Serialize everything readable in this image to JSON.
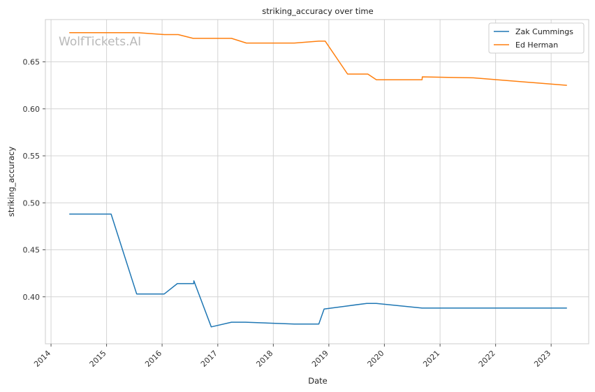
{
  "watermark": "WolfTickets.AI",
  "chart_data": {
    "type": "line",
    "title": "striking_accuracy over time",
    "xlabel": "Date",
    "ylabel": "striking_accuracy",
    "xlim": [
      "2013-11-25",
      "2023-09-05"
    ],
    "ylim": [
      0.35,
      0.695
    ],
    "x_ticks": [
      "2014",
      "2015",
      "2016",
      "2017",
      "2018",
      "2019",
      "2020",
      "2021",
      "2022",
      "2023"
    ],
    "y_ticks": [
      "0.40",
      "0.45",
      "0.50",
      "0.55",
      "0.60",
      "0.65"
    ],
    "grid": true,
    "legend_position": "top-right",
    "series": [
      {
        "name": "Zak Cummings",
        "color": "#1f77b4",
        "points": [
          [
            "2014-05-01",
            0.488
          ],
          [
            "2015-01-31",
            0.488
          ],
          [
            "2015-07-18",
            0.403
          ],
          [
            "2016-01-15",
            0.403
          ],
          [
            "2016-04-10",
            0.414
          ],
          [
            "2016-07-27",
            0.414
          ],
          [
            "2016-07-28",
            0.417
          ],
          [
            "2016-11-19",
            0.368
          ],
          [
            "2017-04-01",
            0.373
          ],
          [
            "2017-07-01",
            0.373
          ],
          [
            "2018-05-19",
            0.371
          ],
          [
            "2018-10-27",
            0.371
          ],
          [
            "2018-12-01",
            0.387
          ],
          [
            "2019-04-20",
            0.39
          ],
          [
            "2019-09-07",
            0.393
          ],
          [
            "2019-11-09",
            0.393
          ],
          [
            "2020-09-05",
            0.388
          ],
          [
            "2023-04-15",
            0.388
          ]
        ]
      },
      {
        "name": "Ed Herman",
        "color": "#ff7f0e",
        "points": [
          [
            "2014-05-01",
            0.681
          ],
          [
            "2015-07-25",
            0.681
          ],
          [
            "2016-01-15",
            0.679
          ],
          [
            "2016-04-16",
            0.679
          ],
          [
            "2016-07-23",
            0.675
          ],
          [
            "2017-04-01",
            0.675
          ],
          [
            "2017-07-08",
            0.67
          ],
          [
            "2018-05-19",
            0.67
          ],
          [
            "2018-10-27",
            0.672
          ],
          [
            "2018-12-08",
            0.672
          ],
          [
            "2019-05-04",
            0.637
          ],
          [
            "2019-09-14",
            0.637
          ],
          [
            "2019-11-09",
            0.631
          ],
          [
            "2020-09-05",
            0.631
          ],
          [
            "2020-09-06",
            0.634
          ],
          [
            "2021-08-07",
            0.633
          ],
          [
            "2023-04-15",
            0.625
          ]
        ]
      }
    ]
  }
}
